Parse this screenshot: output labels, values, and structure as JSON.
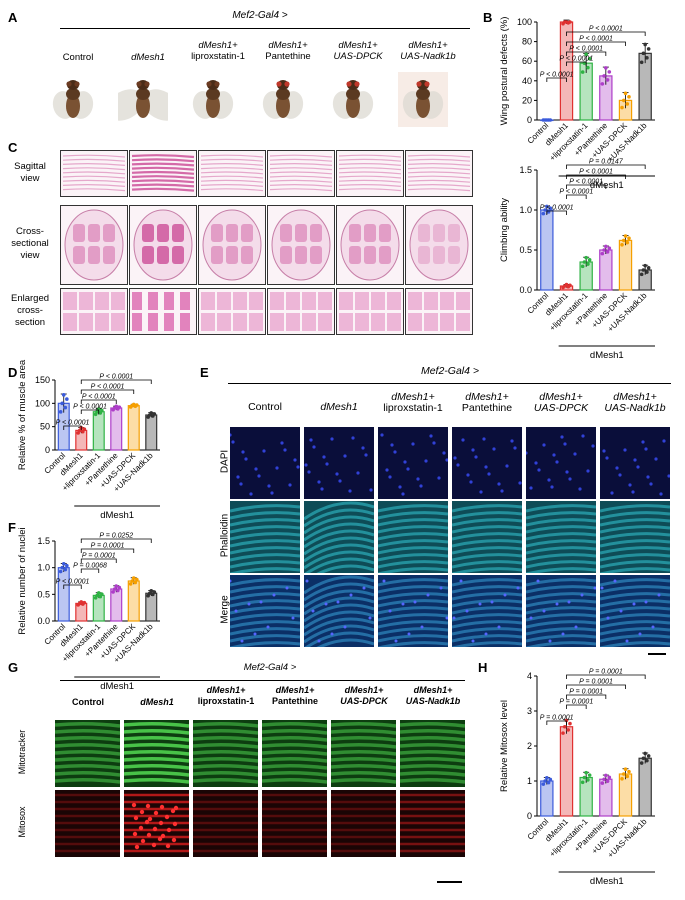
{
  "figure": {
    "panel_letters": [
      "A",
      "B",
      "C",
      "D",
      "E",
      "F",
      "G",
      "H"
    ],
    "driver_label": "Mef2-Gal4 >",
    "groups": [
      {
        "line1": "",
        "line2": "Control"
      },
      {
        "line1": "",
        "line2": "dMesh1"
      },
      {
        "line1": "dMesh1+",
        "line2": "liproxstatin-1"
      },
      {
        "line1": "dMesh1+",
        "line2": "Pantethine"
      },
      {
        "line1": "dMesh1+",
        "line2": "UAS-DPCK"
      },
      {
        "line1": "dMesh1+",
        "line2": "UAS-Nadk1b"
      }
    ],
    "panel_a_labels": [
      "Control",
      "dMesh1",
      "dMesh1+",
      "liproxstatin-1",
      "dMesh1+",
      "Pantethine",
      "dMesh1+",
      "UAS-DPCK",
      "dMesh1+",
      "UAS-Nadk1b"
    ],
    "panel_c_rows": [
      "Sagittal view",
      "Cross-sectional view",
      "Enlarged cross-section"
    ],
    "panel_e_rows": [
      "DAPI",
      "Phalloidin",
      "Merge"
    ],
    "panel_g_rows": [
      "Mitotracker",
      "Mitosox"
    ],
    "group_label": "dMesh1",
    "x_categories": [
      "Control",
      "dMesh1",
      "+liproxstatin-1",
      "+Pantethine",
      "+UAS-DPCK",
      "+UAS-Nadk1b"
    ],
    "bar_colors": [
      "#3b5bdb",
      "#e03131",
      "#2fb344",
      "#ae3ec9",
      "#f59f00",
      "#333333"
    ]
  },
  "chart_data": [
    {
      "id": "B-top",
      "type": "bar",
      "ylabel": "Wing postural defects (%)",
      "ylim": [
        0,
        100
      ],
      "yticks": [
        0,
        20,
        40,
        60,
        80,
        100
      ],
      "categories": [
        "Control",
        "dMesh1",
        "+liproxstatin-1",
        "+Pantethine",
        "+UAS-DPCK",
        "+UAS-Nadk1b"
      ],
      "values": [
        0,
        100,
        58,
        45,
        20,
        68
      ],
      "errors": [
        0,
        2,
        10,
        9,
        8,
        10
      ],
      "pvalues": [
        "P < 0.0001",
        "P < 0.0001",
        "P < 0.0001",
        "P < 0.0001",
        "P < 0.0001"
      ]
    },
    {
      "id": "B-bottom",
      "type": "bar",
      "ylabel": "Climbing ability",
      "ylim": [
        0,
        1.5
      ],
      "yticks": [
        0.0,
        0.5,
        1.0,
        1.5
      ],
      "categories": [
        "Control",
        "dMesh1",
        "+liproxstatin-1",
        "+Pantethine",
        "+UAS-DPCK",
        "+UAS-Nadk1b"
      ],
      "values": [
        1.0,
        0.05,
        0.35,
        0.5,
        0.62,
        0.25
      ],
      "errors": [
        0.05,
        0.02,
        0.06,
        0.05,
        0.06,
        0.06
      ],
      "pvalues": [
        "P < 0.0001",
        "P < 0.0001",
        "P < 0.0001",
        "P < 0.0001",
        "P = 0.0147"
      ]
    },
    {
      "id": "D",
      "type": "bar",
      "ylabel": "Relative % of muscle area",
      "ylim": [
        0,
        150
      ],
      "yticks": [
        0,
        50,
        100,
        150
      ],
      "categories": [
        "Control",
        "dMesh1",
        "+liproxstatin-1",
        "+Pantethine",
        "+UAS-DPCK",
        "+UAS-Nadk1b"
      ],
      "values": [
        100,
        42,
        82,
        90,
        95,
        75
      ],
      "errors": [
        20,
        6,
        6,
        4,
        3,
        5
      ],
      "pvalues": [
        "P < 0.0001",
        "P < 0.0001",
        "P < 0.0001",
        "P < 0.0001",
        "P < 0.0001"
      ]
    },
    {
      "id": "F",
      "type": "bar",
      "ylabel": "Relative number of nuclei",
      "ylim": [
        0,
        1.5
      ],
      "yticks": [
        0.0,
        0.5,
        1.0,
        1.5
      ],
      "categories": [
        "Control",
        "dMesh1",
        "+liproxstatin-1",
        "+Pantethine",
        "+UAS-DPCK",
        "+UAS-Nadk1b"
      ],
      "values": [
        1.0,
        0.33,
        0.48,
        0.6,
        0.75,
        0.52
      ],
      "errors": [
        0.08,
        0.03,
        0.05,
        0.06,
        0.06,
        0.05
      ],
      "pvalues": [
        "P < 0.0001",
        "P = 0.0068",
        "P = 0.0001",
        "P = 0.0001",
        "P = 0.0252"
      ]
    },
    {
      "id": "H",
      "type": "bar",
      "ylabel": "Relative Mitosox level",
      "ylim": [
        0,
        4
      ],
      "yticks": [
        0,
        1,
        2,
        3,
        4
      ],
      "categories": [
        "Control",
        "dMesh1",
        "+liproxstatin-1",
        "+Pantethine",
        "+UAS-DPCK",
        "+UAS-Nadk1b"
      ],
      "values": [
        1.0,
        2.55,
        1.1,
        1.05,
        1.2,
        1.65
      ],
      "errors": [
        0.1,
        0.2,
        0.15,
        0.12,
        0.15,
        0.15
      ],
      "pvalues": [
        "P = 0.0001",
        "P = 0.0001",
        "P = 0.0001",
        "P = 0.0001",
        "P = 0.0001"
      ]
    }
  ]
}
